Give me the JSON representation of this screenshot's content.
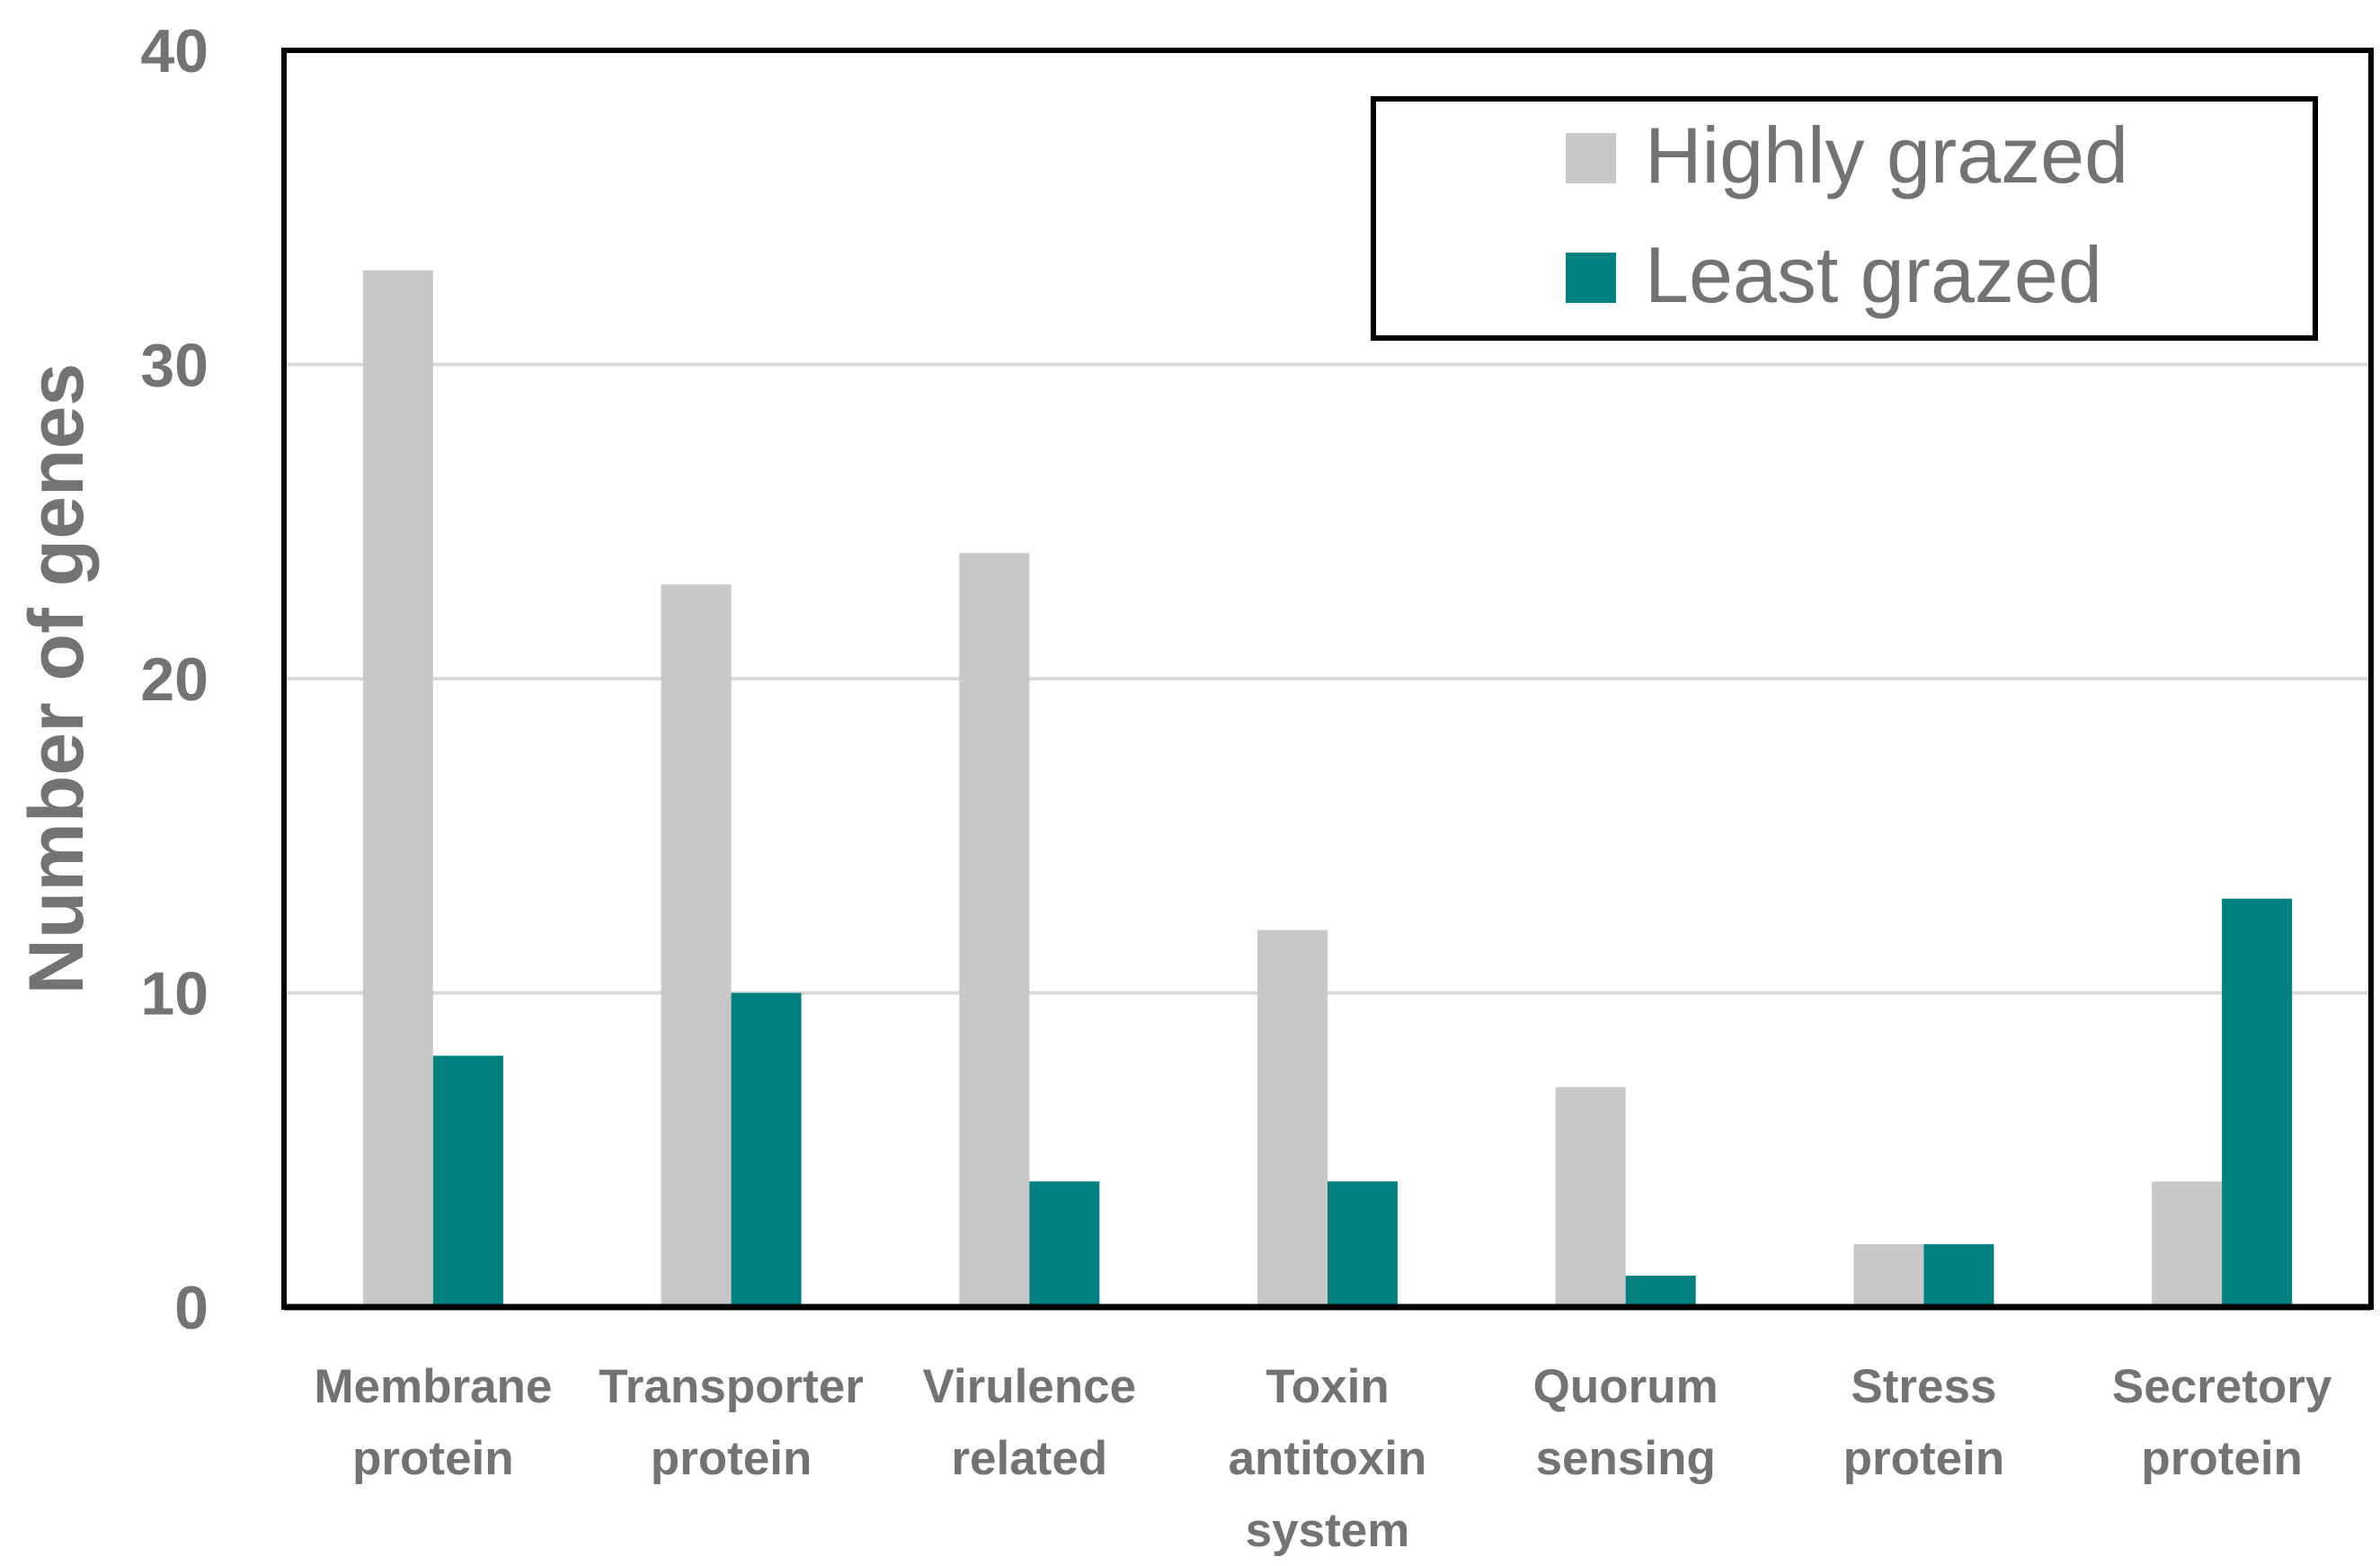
{
  "chart_data": {
    "type": "bar",
    "title": "",
    "xlabel": "",
    "ylabel": "Number of genes",
    "ylim": [
      0,
      40
    ],
    "yticks": [
      "0",
      "10",
      "20",
      "30",
      "40"
    ],
    "grid": true,
    "legend_position": "top-right",
    "categories": [
      [
        "Membrane",
        "protein"
      ],
      [
        "Transporter",
        "protein"
      ],
      [
        "Virulence",
        "related"
      ],
      [
        "Toxin",
        "antitoxin",
        "system"
      ],
      [
        "Quorum",
        "sensing"
      ],
      [
        "Stress",
        "protein"
      ],
      [
        "Secretory",
        "protein"
      ]
    ],
    "series": [
      {
        "name": "Highly grazed",
        "color": "#c8c8c8",
        "values": [
          33,
          23,
          24,
          12,
          7,
          2,
          4
        ]
      },
      {
        "name": "Least grazed",
        "color": "#008080",
        "values": [
          8,
          10,
          4,
          4,
          1,
          2,
          13
        ]
      }
    ]
  }
}
